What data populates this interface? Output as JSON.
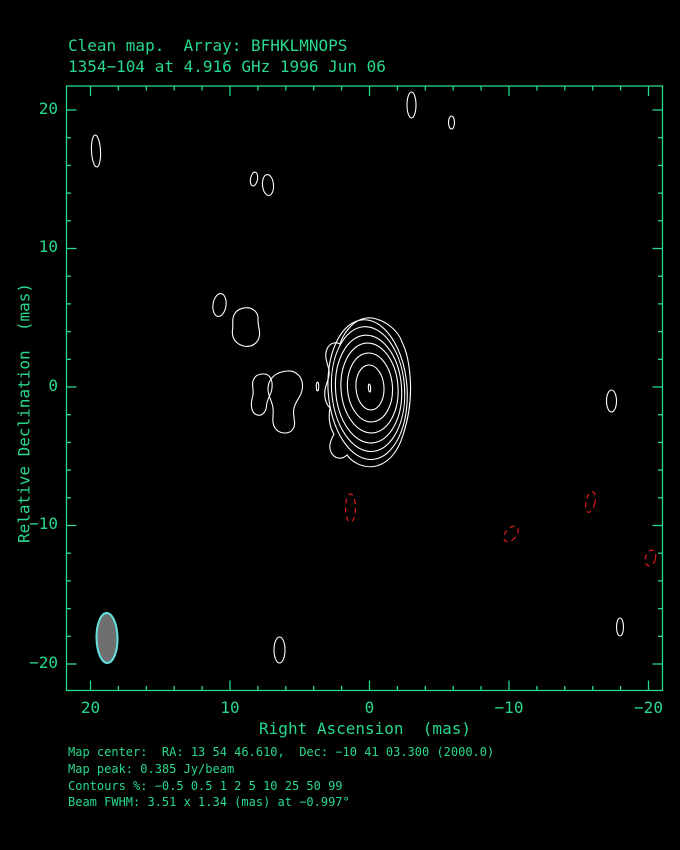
{
  "title": {
    "line1": "Clean map.  Array: BFHKLMNOPS",
    "line2": "1354−104 at 4.916 GHz 1996 Jun 06"
  },
  "axes": {
    "x": {
      "label": "Right Ascension  (mas)",
      "tick_labels": [
        "20",
        "10",
        "0",
        "−10",
        "−20"
      ]
    },
    "y": {
      "label": "Relative Declination  (mas)",
      "tick_labels": [
        "20",
        "10",
        "0",
        "−10",
        "−20"
      ]
    }
  },
  "footer": {
    "lines": [
      "Map center:  RA: 13 54 46.610,  Dec: −10 41 03.300 (2000.0)",
      "Map peak: 0.385 Jy/beam",
      "Contours %: −0.5 0.5 1 2 5 10 25 50 99",
      "Beam FWHM: 3.51 x 1.34 (mas) at −0.997°"
    ]
  },
  "colors": {
    "background": "#000000",
    "frame_and_text": "#28D88C",
    "contour_positive": "#FFFFFF",
    "contour_negative": "#E21B1B",
    "beam_fill": "#6F6F6F",
    "beam_outline": "#63E1E1"
  },
  "chart_data": {
    "type": "contour_map",
    "title": "Clean map.  Array: BFHKLMNOPS",
    "subtitle": "1354−104 at 4.916 GHz 1996 Jun 06",
    "source_name": "1354−104",
    "frequency": "4.916 GHz",
    "observation_date": "1996 Jun 06",
    "array_stations": "BFHKLMNOPS",
    "xlabel": "Right Ascension  (mas)",
    "ylabel": "Relative Declination  (mas)",
    "xlim_mas": [
      21.8,
      -21.2
    ],
    "ylim_mas": [
      -21.9,
      21.7
    ],
    "x_ticks_mas": [
      20,
      10,
      0,
      -10,
      -20
    ],
    "y_ticks_mas": [
      20,
      10,
      0,
      -10,
      -20
    ],
    "x_axis_reversed": true,
    "grid": false,
    "map_center": {
      "ra": "13 54 46.610",
      "dec": "−10 41 03.300",
      "equinox": "2000.0"
    },
    "map_peak_jy_per_beam": 0.385,
    "contour_levels_percent": [
      -0.5,
      0.5,
      1,
      2,
      5,
      10,
      25,
      50,
      99
    ],
    "beam_fwhm_mas": [
      3.51,
      1.34
    ],
    "beam_position_angle_deg": -0.997,
    "features": [
      {
        "name": "core",
        "ra_mas": 0.0,
        "dec_mas": 0.0,
        "type": "positive-peak",
        "note": "8 nested contour levels, elongated N-S"
      },
      {
        "name": "jet-blob-inner-fragment",
        "ra_mas": 3.7,
        "dec_mas": 0.1,
        "type": "positive"
      },
      {
        "name": "jet-blob-east-1",
        "ra_mas": 6.0,
        "dec_mas": -0.8,
        "type": "positive"
      },
      {
        "name": "jet-blob-east-2",
        "ra_mas": 7.8,
        "dec_mas": -0.6,
        "type": "positive"
      },
      {
        "name": "jet-blob-upper",
        "ra_mas": 8.9,
        "dec_mas": 4.3,
        "type": "positive"
      },
      {
        "name": "jet-blob-upper-small",
        "ra_mas": 10.8,
        "dec_mas": 5.9,
        "type": "positive"
      },
      {
        "name": "noise-blob-nw",
        "ra_mas": 19.6,
        "dec_mas": 17.0,
        "type": "positive"
      },
      {
        "name": "noise-blob-n-small",
        "ra_mas": 8.3,
        "dec_mas": 15.0,
        "type": "positive"
      },
      {
        "name": "noise-blob-n",
        "ra_mas": 7.3,
        "dec_mas": 14.6,
        "type": "positive"
      },
      {
        "name": "noise-blob-top",
        "ra_mas": -3.1,
        "dec_mas": 20.4,
        "type": "positive"
      },
      {
        "name": "noise-blob-top-small",
        "ra_mas": -5.9,
        "dec_mas": 19.1,
        "type": "positive"
      },
      {
        "name": "noise-blob-east-edge",
        "ra_mas": -17.4,
        "dec_mas": -1.0,
        "type": "positive"
      },
      {
        "name": "noise-blob-south",
        "ra_mas": 6.4,
        "dec_mas": -19.0,
        "type": "positive"
      },
      {
        "name": "noise-blob-se",
        "ra_mas": -18.1,
        "dec_mas": -17.3,
        "type": "positive"
      },
      {
        "name": "negative-blob-1",
        "ra_mas": 1.3,
        "dec_mas": -8.7,
        "type": "negative"
      },
      {
        "name": "negative-blob-2",
        "ra_mas": -15.9,
        "dec_mas": -8.3,
        "type": "negative"
      },
      {
        "name": "negative-blob-3",
        "ra_mas": -10.2,
        "dec_mas": -10.6,
        "type": "negative"
      },
      {
        "name": "negative-blob-4",
        "ra_mas": -20.2,
        "dec_mas": -12.3,
        "type": "negative"
      }
    ]
  }
}
